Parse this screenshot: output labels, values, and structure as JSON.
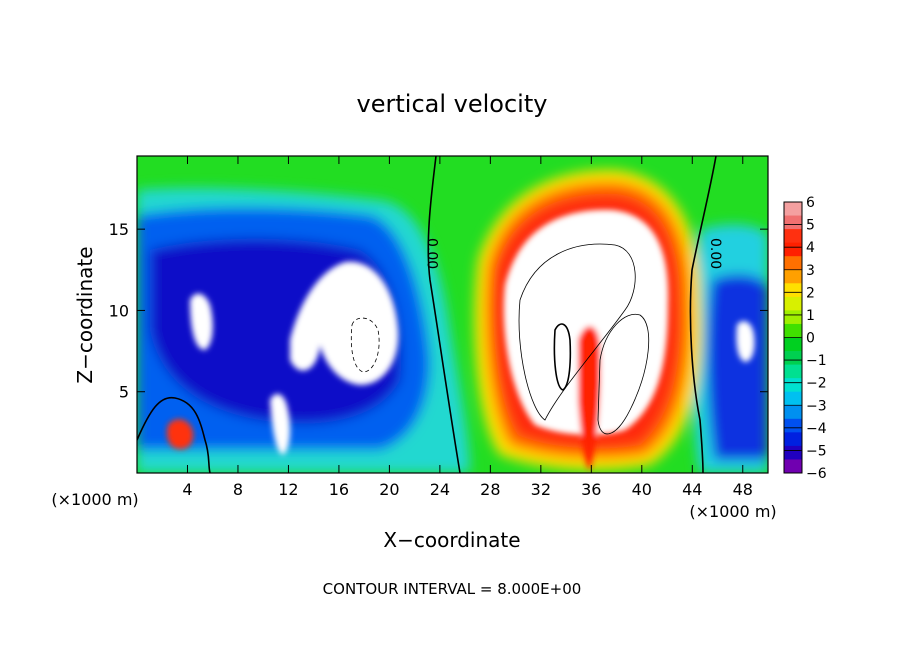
{
  "chart_data": {
    "type": "heatmap",
    "title": "vertical velocity",
    "xlabel": "X−coordinate",
    "ylabel": "Z−coordinate",
    "x_unit_left": "(×1000 m)",
    "x_unit_right": "(×1000 m)",
    "footer": "CONTOUR INTERVAL = 8.000E+00",
    "xlim": [
      0,
      50
    ],
    "ylim": [
      0,
      19.5
    ],
    "xticks": [
      4,
      8,
      12,
      16,
      20,
      24,
      28,
      32,
      36,
      40,
      44,
      48
    ],
    "xtick_labels": [
      "4",
      "8",
      "12",
      "16",
      "20",
      "24",
      "28",
      "32",
      "36",
      "40",
      "44",
      "48"
    ],
    "yticks": [
      5,
      10,
      15
    ],
    "ytick_labels": [
      "5",
      "10",
      "15"
    ],
    "contour_labels": [
      "0.00",
      "0.00"
    ],
    "colorbar": {
      "range": [
        -6,
        6
      ],
      "tick_values": [
        6,
        5,
        4,
        3,
        2,
        1,
        0,
        -1,
        -2,
        -3,
        -4,
        -5,
        -6
      ],
      "tick_labels": [
        "6",
        "5",
        "4",
        "3",
        "2",
        "1",
        "0",
        "−1",
        "−2",
        "−3",
        "−4",
        "−5",
        "−6"
      ],
      "colors": [
        "#f4a0a0",
        "#f07070",
        "#ff3010",
        "#ff2000",
        "#ff7000",
        "#ffa000",
        "#ffe000",
        "#d8f000",
        "#a0f000",
        "#40e000",
        "#00d020",
        "#00d050",
        "#00e090",
        "#00e0d0",
        "#00c0f0",
        "#0090f0",
        "#0050f0",
        "#0020e0",
        "#2000c0",
        "#7000b0"
      ]
    },
    "features": [
      {
        "kind": "updraft_core",
        "x": 36,
        "z": 9.5,
        "value": 6
      },
      {
        "kind": "downdraft_core",
        "x": 17,
        "z": 10,
        "value": -6
      },
      {
        "kind": "downdraft_core",
        "x": 5,
        "z": 9.5,
        "value": -6
      },
      {
        "kind": "downdraft_core",
        "x": 47,
        "z": 8,
        "value": -6
      }
    ]
  }
}
